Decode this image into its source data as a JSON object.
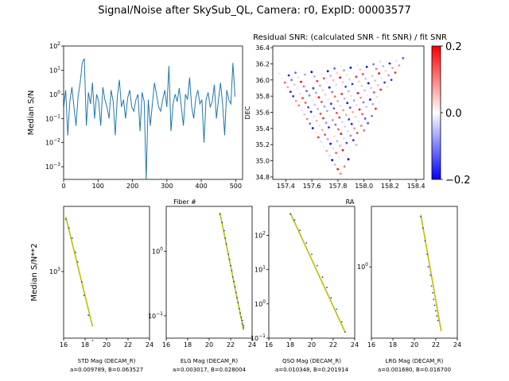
{
  "figure": {
    "suptitle": "Signal/Noise after SkySub_QL, Camera: r0, ExpID: 00003577"
  },
  "colors": {
    "line": "#1f77b4",
    "fit": "#bfbf00",
    "points": "#1f3fbf"
  },
  "chart_data": [
    {
      "id": "sn_vs_fiber",
      "type": "line",
      "title": "",
      "xlabel": "Fiber #",
      "ylabel": "Median S/N",
      "xlim": [
        0,
        520
      ],
      "ylim": [
        0.0003,
        100
      ],
      "yscale": "log",
      "xticks": [
        0,
        100,
        200,
        300,
        400,
        500
      ],
      "yticks": [
        {
          "v": 0.001,
          "b": "10",
          "e": "−3"
        },
        {
          "v": 0.01,
          "b": "10",
          "e": "−2"
        },
        {
          "v": 0.1,
          "b": "10",
          "e": "−1"
        },
        {
          "v": 1,
          "b": "10",
          "e": "0"
        },
        {
          "v": 10,
          "b": "10",
          "e": "1"
        },
        {
          "v": 100,
          "b": "10",
          "e": "2"
        }
      ],
      "series": [
        {
          "x": [
            0,
            6,
            12,
            18,
            24,
            30,
            36,
            42,
            48,
            54,
            60,
            66,
            72,
            78,
            84,
            90,
            96,
            102,
            108,
            114,
            120,
            126,
            132,
            138,
            144,
            150,
            156,
            162,
            168,
            174,
            180,
            186,
            192,
            198,
            204,
            210,
            216,
            222,
            228,
            234,
            240,
            246,
            252,
            258,
            264,
            270,
            276,
            282,
            288,
            294,
            300,
            306,
            312,
            318,
            324,
            330,
            336,
            342,
            348,
            354,
            360,
            366,
            372,
            378,
            384,
            390,
            396,
            402,
            408,
            414,
            420,
            426,
            432,
            438,
            444,
            450,
            456,
            462,
            468,
            474,
            480,
            486,
            492,
            498
          ],
          "values": [
            0.3,
            1.5,
            0.02,
            0.5,
            2.0,
            0.3,
            0.05,
            0.8,
            3.0,
            20.0,
            30.0,
            0.05,
            1.2,
            0.4,
            3.0,
            0.1,
            1.0,
            0.5,
            0.05,
            2.0,
            0.6,
            0.3,
            0.1,
            1.5,
            0.5,
            0.02,
            0.8,
            4.0,
            0.3,
            0.6,
            0.1,
            0.7,
            1.5,
            0.3,
            0.2,
            0.6,
            1.0,
            0.03,
            1.2,
            0.5,
            0.0003,
            0.6,
            0.05,
            0.4,
            3.0,
            1.0,
            0.3,
            0.2,
            0.6,
            1.5,
            0.3,
            15.0,
            0.03,
            0.4,
            1.0,
            0.5,
            1.8,
            0.3,
            0.05,
            1.0,
            0.6,
            5.0,
            0.3,
            0.1,
            0.7,
            1.5,
            0.4,
            0.6,
            0.01,
            0.6,
            1.2,
            0.3,
            0.5,
            2.5,
            0.1,
            0.6,
            3.0,
            0.4,
            0.02,
            1.5,
            0.6,
            0.4,
            20.0,
            0.8
          ]
        }
      ]
    },
    {
      "id": "residual_snr",
      "type": "scatter",
      "title": "Residual SNR: (calculated SNR - fit SNR) / fit SNR",
      "xlabel": "RA",
      "ylabel": "DEC",
      "xlim": [
        157.3,
        158.46
      ],
      "ylim": [
        34.77,
        36.42
      ],
      "xticks": [
        157.4,
        157.6,
        157.8,
        158.0,
        158.2,
        158.4
      ],
      "yticks": [
        34.8,
        35.0,
        35.2,
        35.4,
        35.6,
        35.8,
        36.0,
        36.2,
        36.4
      ],
      "colorbar": {
        "min": -0.2,
        "max": 0.2,
        "ticks": [
          "0.2",
          "0.0",
          "−0.2"
        ]
      },
      "footprint": {
        "apex": [
          157.82,
          34.84
        ],
        "left": [
          157.35,
          36.08
        ],
        "right": [
          158.3,
          36.27
        ]
      },
      "grid": {
        "rows": 22,
        "cols": 16
      }
    },
    {
      "id": "std",
      "type": "scatter",
      "xlabel": "STD Mag (DECAM_R)",
      "ylabel": "Median S/N**2",
      "fit_label": "a=0.009789, B=0.063527",
      "xlim": [
        16,
        24
      ],
      "ylim": [
        160,
        6000
      ],
      "yscale": "log",
      "xticks": [
        16,
        18,
        20,
        22,
        24
      ],
      "yticks": [
        {
          "v": 1000,
          "b": "10",
          "e": "3"
        }
      ],
      "points_x": [
        16.2,
        16.5,
        16.8,
        17.1,
        17.3,
        17.7,
        17.9,
        18.3,
        18.7
      ],
      "points_y": [
        4200,
        3300,
        2500,
        1700,
        1300,
        750,
        520,
        300,
        150
      ],
      "fit_x": [
        16.2,
        18.7
      ],
      "fit_y": [
        4500,
        220
      ]
    },
    {
      "id": "elg",
      "type": "scatter",
      "xlabel": "ELG Mag (DECAM_R)",
      "ylabel": "",
      "fit_label": "a=0.003017, B=0.028004",
      "xlim": [
        16,
        24
      ],
      "ylim": [
        0.045,
        5
      ],
      "yscale": "log",
      "xticks": [
        16,
        18,
        20,
        22,
        24
      ],
      "yticks": [
        {
          "v": 0.1,
          "b": "10",
          "e": "−1"
        },
        {
          "v": 1,
          "b": "10",
          "e": "0"
        }
      ],
      "points_x": [
        21.0,
        21.2,
        21.4,
        21.5,
        21.6,
        21.8,
        21.9,
        22.0,
        22.1,
        22.2,
        22.3,
        22.4,
        22.5,
        22.6,
        22.7,
        22.8,
        22.9,
        23.0,
        23.1,
        23.1,
        23.2,
        23.2
      ],
      "points_y": [
        3.8,
        2.8,
        2.1,
        1.6,
        1.3,
        0.9,
        0.75,
        0.6,
        0.5,
        0.4,
        0.34,
        0.28,
        0.23,
        0.19,
        0.16,
        0.13,
        0.11,
        0.095,
        0.085,
        0.075,
        0.07,
        0.065
      ],
      "fit_x": [
        21.0,
        23.2
      ],
      "fit_y": [
        4.0,
        0.06
      ]
    },
    {
      "id": "qso",
      "type": "scatter",
      "xlabel": "QSO Mag (DECAM_R)",
      "ylabel": "",
      "fit_label": "a=0.010348, B=0.201914",
      "xlim": [
        16,
        24
      ],
      "ylim": [
        0.1,
        700
      ],
      "yscale": "log",
      "xticks": [
        16,
        18,
        20,
        22,
        24
      ],
      "yticks": [
        {
          "v": 0.1,
          "b": "10",
          "e": "−1"
        },
        {
          "v": 1,
          "b": "10",
          "e": "0"
        },
        {
          "v": 10,
          "b": "10",
          "e": "1"
        },
        {
          "v": 100,
          "b": "10",
          "e": "2"
        }
      ],
      "points_x": [
        18.0,
        18.4,
        18.9,
        19.5,
        20.0,
        20.5,
        21.0,
        21.4,
        21.8,
        22.3,
        22.8,
        23.1
      ],
      "points_y": [
        420,
        280,
        140,
        60,
        28,
        13,
        6,
        3,
        1.5,
        0.7,
        0.3,
        0.15
      ],
      "fit_x": [
        18.0,
        23.1
      ],
      "fit_y": [
        450,
        0.15
      ]
    },
    {
      "id": "lrg",
      "type": "scatter",
      "xlabel": "LRG Mag (DECAM_R)",
      "ylabel": "",
      "fit_label": "a=0.001680, B=0.016700",
      "xlim": [
        16,
        24
      ],
      "ylim": [
        0.15,
        5
      ],
      "yscale": "log",
      "xticks": [
        16,
        18,
        20,
        22,
        24
      ],
      "yticks": [
        {
          "v": 1,
          "b": "10",
          "e": "0"
        }
      ],
      "points_x": [
        20.6,
        20.8,
        21.0,
        21.2,
        21.3,
        21.5,
        21.6,
        21.7,
        21.8,
        21.9,
        22.0,
        22.1,
        22.2
      ],
      "points_y": [
        3.8,
        2.8,
        2.0,
        1.4,
        1.0,
        0.8,
        0.6,
        0.5,
        0.42,
        0.36,
        0.31,
        0.27,
        0.24
      ],
      "fit_x": [
        20.6,
        22.5
      ],
      "fit_y": [
        4.0,
        0.18
      ]
    }
  ]
}
